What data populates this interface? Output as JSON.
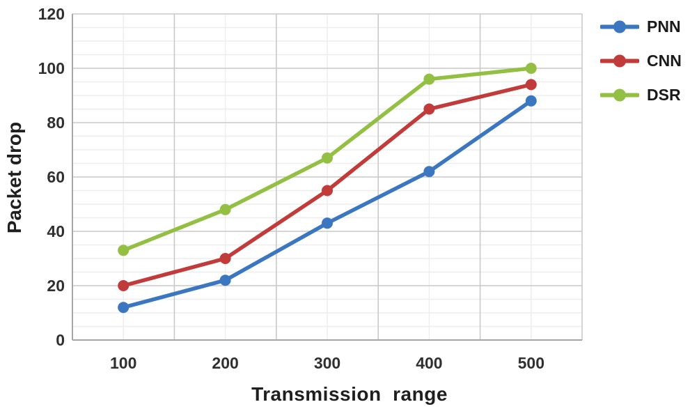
{
  "chart_data": {
    "type": "line",
    "title": "",
    "xlabel": "Transmission  range",
    "ylabel": "Packet drop",
    "categories": [
      "100",
      "200",
      "300",
      "400",
      "500"
    ],
    "y_ticks": [
      0,
      20,
      40,
      60,
      80,
      100,
      120
    ],
    "ylim": [
      0,
      120
    ],
    "minor_y_step": 5,
    "grid": "major-and-minor",
    "legend_position": "right",
    "marker": "circle",
    "series": [
      {
        "name": "PNN",
        "color": "#3b77c0",
        "values": [
          12,
          22,
          43,
          62,
          88
        ]
      },
      {
        "name": "CNN",
        "color": "#c23b3b",
        "values": [
          20,
          30,
          55,
          85,
          94
        ]
      },
      {
        "name": "DSR",
        "color": "#93c043",
        "values": [
          33,
          48,
          67,
          96,
          100
        ]
      }
    ],
    "style_colors": {
      "axis_line": "#a6a6a6",
      "major_grid": "#c9c9c9",
      "minor_grid": "#ededed",
      "tick_label": "#303030",
      "background": "#ffffff"
    }
  }
}
